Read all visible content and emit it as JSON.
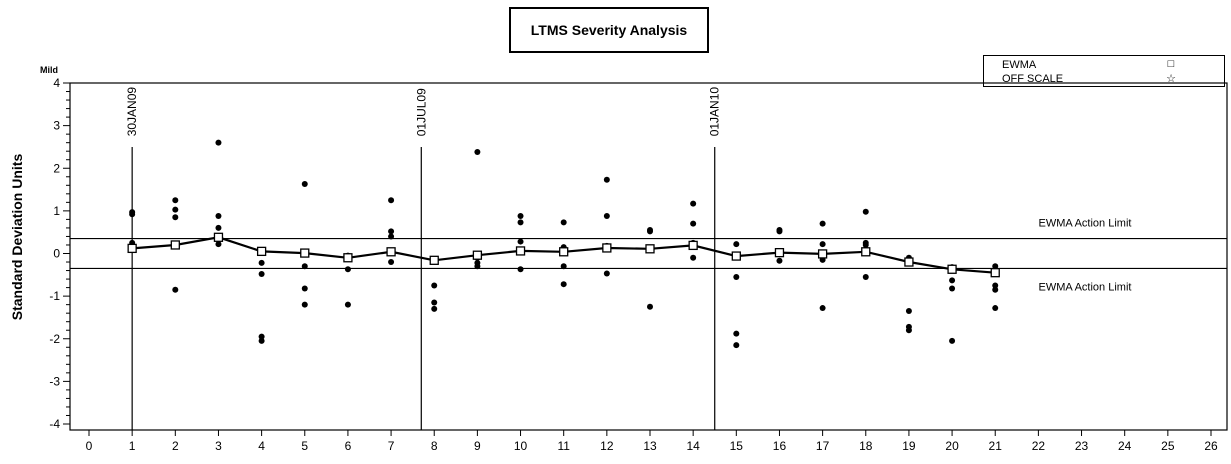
{
  "chart_data": {
    "type": "scatter",
    "title": "LTMS Severity Analysis",
    "ylabel": "Standard Deviation Units",
    "y_top_label": "Mild",
    "xlim": [
      0,
      26
    ],
    "ylim": [
      -4,
      4
    ],
    "x_ticks": [
      0,
      1,
      2,
      3,
      4,
      5,
      6,
      7,
      8,
      9,
      10,
      11,
      12,
      13,
      14,
      15,
      16,
      17,
      18,
      19,
      20,
      21,
      22,
      23,
      24,
      25,
      26
    ],
    "y_ticks": [
      -4,
      -3,
      -2,
      -1,
      0,
      1,
      2,
      3,
      4
    ],
    "legend": {
      "placement": "top-right",
      "entries": [
        {
          "label": "EWMA",
          "symbol": "□"
        },
        {
          "label": "OFF SCALE",
          "symbol": "☆"
        }
      ]
    },
    "action_limits": [
      {
        "label": "EWMA Action Limit",
        "y": 0.35
      },
      {
        "label": "EWMA Action Limit",
        "y": -0.35
      }
    ],
    "date_markers": [
      {
        "label": "30JAN09",
        "x": 1.0
      },
      {
        "label": "01JUL09",
        "x": 7.7
      },
      {
        "label": "01JAN10",
        "x": 14.5
      }
    ],
    "series": [
      {
        "name": "EWMA",
        "x": [
          1,
          2,
          3,
          4,
          5,
          6,
          7,
          8,
          9,
          10,
          11,
          12,
          13,
          14,
          15,
          16,
          17,
          18,
          19,
          20,
          21
        ],
        "y": [
          0.12,
          0.2,
          0.38,
          0.05,
          0.01,
          -0.1,
          0.04,
          -0.16,
          -0.04,
          0.06,
          0.04,
          0.13,
          0.11,
          0.19,
          -0.06,
          0.02,
          -0.01,
          0.04,
          -0.2,
          -0.37,
          -0.45
        ]
      },
      {
        "x": [
          1,
          1,
          1,
          1,
          2,
          2,
          2,
          2,
          3,
          3,
          3,
          3,
          4,
          4,
          4,
          4,
          5,
          5,
          5,
          5,
          6,
          6,
          6,
          6,
          7,
          7,
          7,
          7,
          8,
          8,
          8,
          8,
          9,
          9,
          9,
          9,
          10,
          10,
          10,
          10,
          11,
          11,
          11,
          11,
          12,
          12,
          12,
          12,
          13,
          13,
          13,
          13,
          14,
          14,
          14,
          14,
          15,
          15,
          15,
          15,
          16,
          16,
          16,
          16,
          17,
          17,
          17,
          17,
          18,
          18,
          18,
          18,
          19,
          19,
          19,
          19,
          20,
          20,
          20,
          20,
          21,
          21,
          21,
          21
        ],
        "y": [
          0.97,
          0.92,
          0.25,
          0.1,
          1.25,
          1.03,
          0.85,
          -0.85,
          2.6,
          0.88,
          0.6,
          0.22,
          -0.22,
          -0.48,
          -1.95,
          -2.05,
          1.63,
          -0.3,
          -0.82,
          -1.2,
          -0.05,
          -0.1,
          -0.37,
          -1.2,
          1.25,
          0.52,
          0.4,
          -0.2,
          -0.18,
          -0.75,
          -1.15,
          -1.3,
          2.38,
          -0.1,
          -0.22,
          -0.3,
          0.88,
          0.73,
          0.28,
          -0.37,
          0.73,
          0.15,
          -0.3,
          -0.72,
          1.73,
          0.88,
          0.18,
          -0.47,
          0.55,
          0.52,
          0.13,
          -1.25,
          1.17,
          0.7,
          0.25,
          -0.1,
          0.22,
          -0.55,
          -1.88,
          -2.15,
          0.55,
          0.52,
          -0.17,
          0.0,
          0.7,
          0.22,
          -0.15,
          -1.28,
          0.98,
          0.25,
          0.2,
          -0.55,
          -0.1,
          -1.35,
          -1.72,
          -1.8,
          -0.32,
          -0.63,
          -0.82,
          -2.05,
          -0.3,
          -0.75,
          -0.85,
          -1.28
        ]
      }
    ]
  }
}
